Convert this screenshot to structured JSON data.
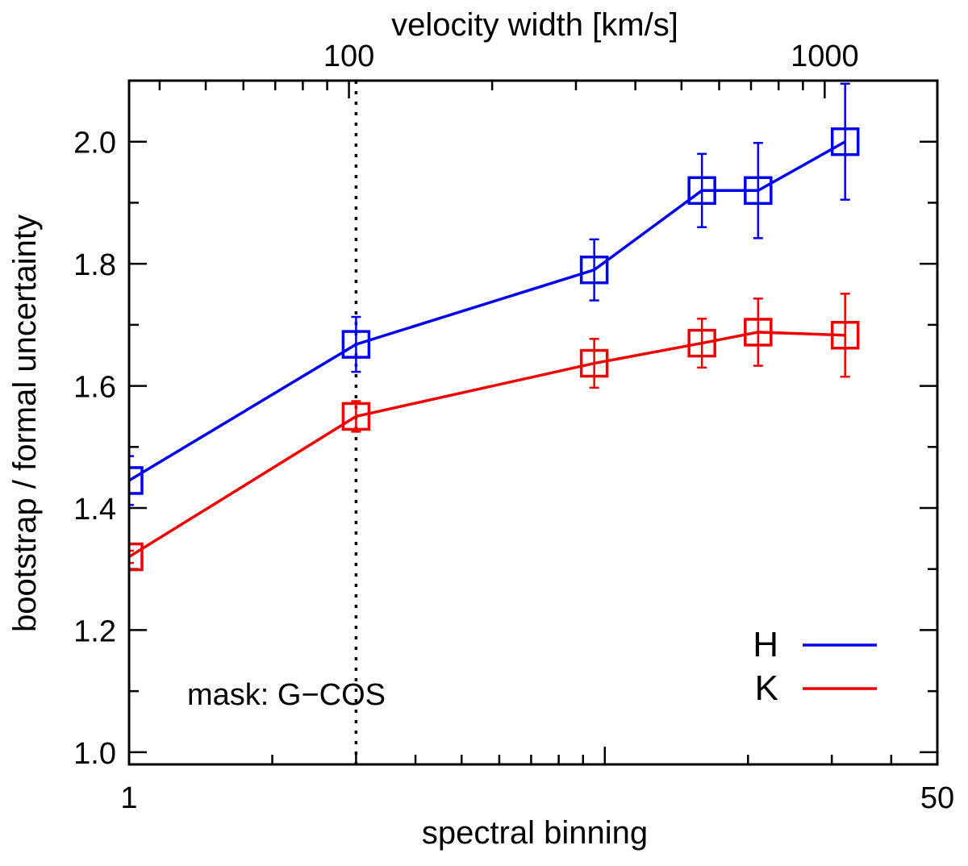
{
  "chart_data": {
    "type": "line",
    "xscale": "log",
    "xlabel": "spectral binning",
    "ylabel": "bootstrap / formal uncertainty",
    "x2label": "velocity width [km/s]",
    "xlim": [
      1,
      50
    ],
    "ylim": [
      0.98,
      2.1
    ],
    "x_tick_labels": [
      {
        "value": 1,
        "label": "1"
      },
      {
        "value": 50,
        "label": "50"
      }
    ],
    "y_tick_labels": [
      {
        "value": 1.0,
        "label": "1.0"
      },
      {
        "value": 1.2,
        "label": "1.2"
      },
      {
        "value": 1.4,
        "label": "1.4"
      },
      {
        "value": 1.6,
        "label": "1.6"
      },
      {
        "value": 1.8,
        "label": "1.8"
      },
      {
        "value": 2.0,
        "label": "2.0"
      }
    ],
    "x2_tick_labels": [
      {
        "value": 100,
        "label": "100"
      },
      {
        "value": 1000,
        "label": "1000"
      }
    ],
    "x2_per_x": 34.5,
    "reference_line": {
      "x": 3,
      "style": "dotted"
    },
    "annotation": "mask: G−COS",
    "series": [
      {
        "name": "H",
        "color": "#0000ee",
        "x": [
          1,
          3,
          9.5,
          16,
          21,
          32
        ],
        "y": [
          1.445,
          1.668,
          1.79,
          1.92,
          1.92,
          2.0
        ],
        "err": [
          0.04,
          0.045,
          0.05,
          0.06,
          0.078,
          0.095
        ]
      },
      {
        "name": "K",
        "color": "#ee0000",
        "x": [
          1,
          3,
          9.5,
          16,
          21,
          32
        ],
        "y": [
          1.32,
          1.55,
          1.637,
          1.67,
          1.688,
          1.683
        ],
        "err": [
          0.01,
          0.025,
          0.04,
          0.04,
          0.055,
          0.068
        ]
      }
    ],
    "legend": {
      "position": "bottom-right",
      "entries": [
        "H",
        "K"
      ]
    }
  }
}
